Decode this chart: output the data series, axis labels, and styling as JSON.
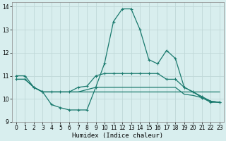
{
  "xlabel": "Humidex (Indice chaleur)",
  "xlim": [
    -0.5,
    23.5
  ],
  "ylim": [
    9,
    14.2
  ],
  "yticks": [
    9,
    10,
    11,
    12,
    13,
    14
  ],
  "xticks": [
    0,
    1,
    2,
    3,
    4,
    5,
    6,
    7,
    8,
    9,
    10,
    11,
    12,
    13,
    14,
    15,
    16,
    17,
    18,
    19,
    20,
    21,
    22,
    23
  ],
  "bg_color": "#d8eeee",
  "grid_color": "#c8e0e0",
  "line_color": "#1a7a6e",
  "line1_x": [
    0,
    1,
    2,
    3,
    4,
    5,
    6,
    7,
    8,
    9,
    10,
    11,
    12,
    13,
    14,
    15,
    16,
    17,
    18,
    19,
    20,
    21,
    22,
    23
  ],
  "line1_y": [
    10.85,
    10.85,
    10.5,
    10.3,
    9.75,
    9.62,
    9.52,
    9.52,
    9.52,
    10.5,
    11.55,
    13.35,
    13.9,
    13.9,
    13.0,
    11.7,
    11.52,
    12.1,
    11.75,
    10.5,
    10.3,
    10.05,
    9.85,
    9.85
  ],
  "line2_x": [
    0,
    1,
    2,
    3,
    4,
    5,
    6,
    7,
    8,
    9,
    10,
    11,
    12,
    13,
    14,
    15,
    16,
    17,
    18,
    19,
    20,
    21,
    22,
    23
  ],
  "line2_y": [
    10.85,
    10.85,
    10.5,
    10.3,
    10.3,
    10.3,
    10.3,
    10.3,
    10.3,
    10.3,
    10.3,
    10.3,
    10.3,
    10.3,
    10.3,
    10.3,
    10.3,
    10.3,
    10.3,
    10.3,
    10.3,
    10.3,
    10.3,
    10.3
  ],
  "line3_x": [
    2,
    3,
    4,
    5,
    6,
    7,
    8,
    9,
    10,
    11,
    12,
    13,
    14,
    15,
    16,
    17,
    18,
    19,
    20,
    21,
    22,
    23
  ],
  "line3_y": [
    10.5,
    10.3,
    10.3,
    10.3,
    10.3,
    10.3,
    10.4,
    10.5,
    10.5,
    10.5,
    10.5,
    10.5,
    10.5,
    10.5,
    10.5,
    10.5,
    10.5,
    10.2,
    10.15,
    10.05,
    9.9,
    9.85
  ],
  "line4_x": [
    0,
    1,
    2,
    3,
    4,
    5,
    6,
    7,
    8,
    9,
    10,
    11,
    12,
    13,
    14,
    15,
    16,
    17,
    18,
    19,
    20,
    21,
    22,
    23
  ],
  "line4_y": [
    11.0,
    11.0,
    10.5,
    10.3,
    10.3,
    10.3,
    10.3,
    10.5,
    10.55,
    11.0,
    11.1,
    11.1,
    11.1,
    11.1,
    11.1,
    11.1,
    11.1,
    10.85,
    10.85,
    10.5,
    10.3,
    10.1,
    9.9,
    9.85
  ]
}
